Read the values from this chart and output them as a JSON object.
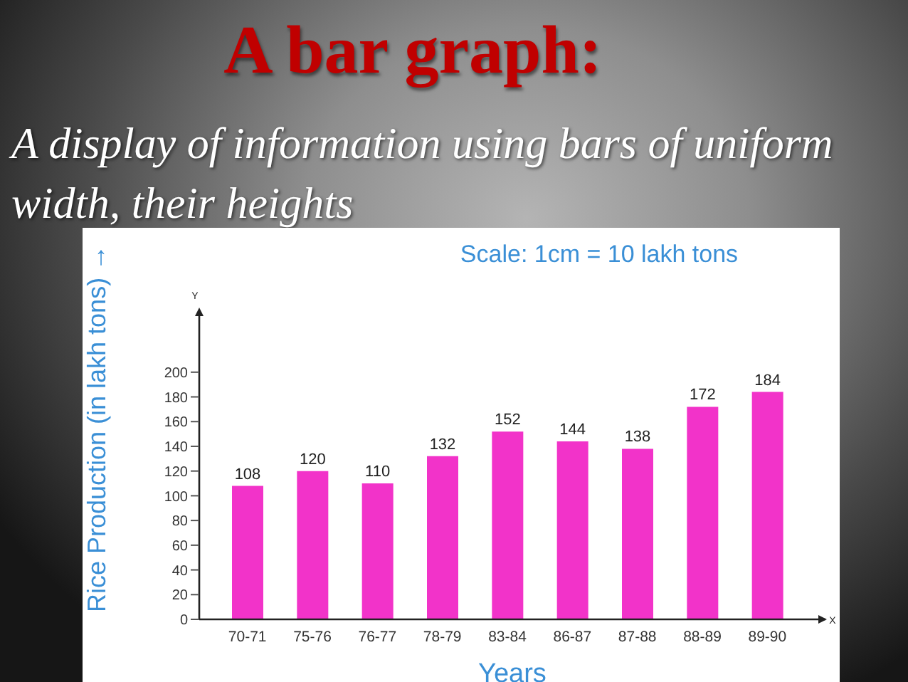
{
  "chart_data": {
    "type": "bar",
    "title": "A bar graph:",
    "subtitle": "A display of information using bars of uniform width, their heights",
    "xlabel": "Years",
    "ylabel": "Rice Production (in lakh tons) →",
    "annotations": [
      "Scale: 1cm = 10 lakh tons",
      "Y",
      "X"
    ],
    "categories": [
      "70-71",
      "75-76",
      "76-77",
      "78-79",
      "83-84",
      "86-87",
      "87-88",
      "88-89",
      "89-90"
    ],
    "values": [
      108,
      120,
      110,
      132,
      152,
      144,
      138,
      172,
      184
    ],
    "color": "#f233c9",
    "ylim": [
      0,
      250
    ],
    "yticks": [
      0,
      20,
      40,
      60,
      80,
      100,
      120,
      140,
      160,
      180,
      200
    ],
    "data_labels": true
  }
}
